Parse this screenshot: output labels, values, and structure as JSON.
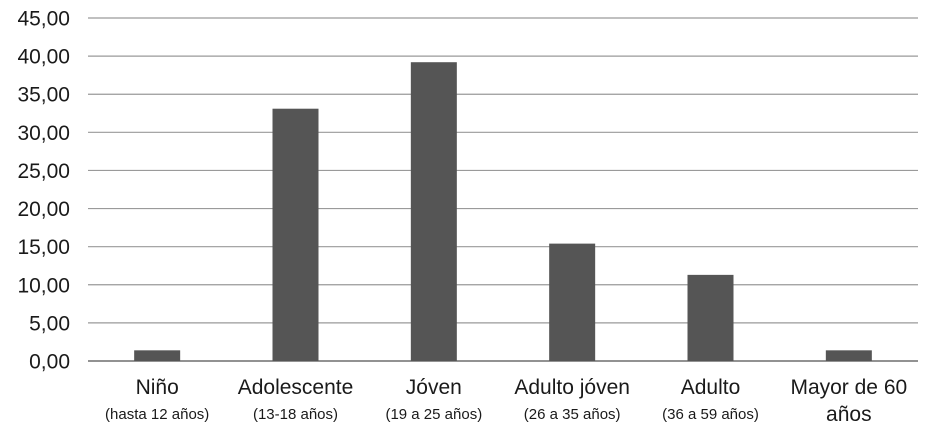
{
  "chart_data": {
    "type": "bar",
    "categories": [
      {
        "label": "Niño",
        "sublabel": "(hasta 12 años)"
      },
      {
        "label": "Adolescente",
        "sublabel": "(13-18 años)"
      },
      {
        "label": "Jóven",
        "sublabel": "(19 a 25 años)"
      },
      {
        "label": "Adulto jóven",
        "sublabel": "(26 a 35 años)"
      },
      {
        "label": "Adulto",
        "sublabel": "(36 a 59 años)"
      },
      {
        "label": "Mayor de 60",
        "sublabel": "años",
        "sublabel_style": "main"
      }
    ],
    "values": [
      1.4,
      33.1,
      39.2,
      15.4,
      11.3,
      1.4
    ],
    "ylim": [
      0,
      45
    ],
    "ytick_step": 5,
    "ytick_labels": [
      "0,00",
      "5,00",
      "10,00",
      "15,00",
      "20,00",
      "25,00",
      "30,00",
      "35,00",
      "40,00",
      "45,00"
    ],
    "grid": true,
    "legend": "none",
    "title": "",
    "xlabel": "",
    "ylabel": "",
    "bar_color": "#555555",
    "grid_color": "#9a9a9a"
  }
}
